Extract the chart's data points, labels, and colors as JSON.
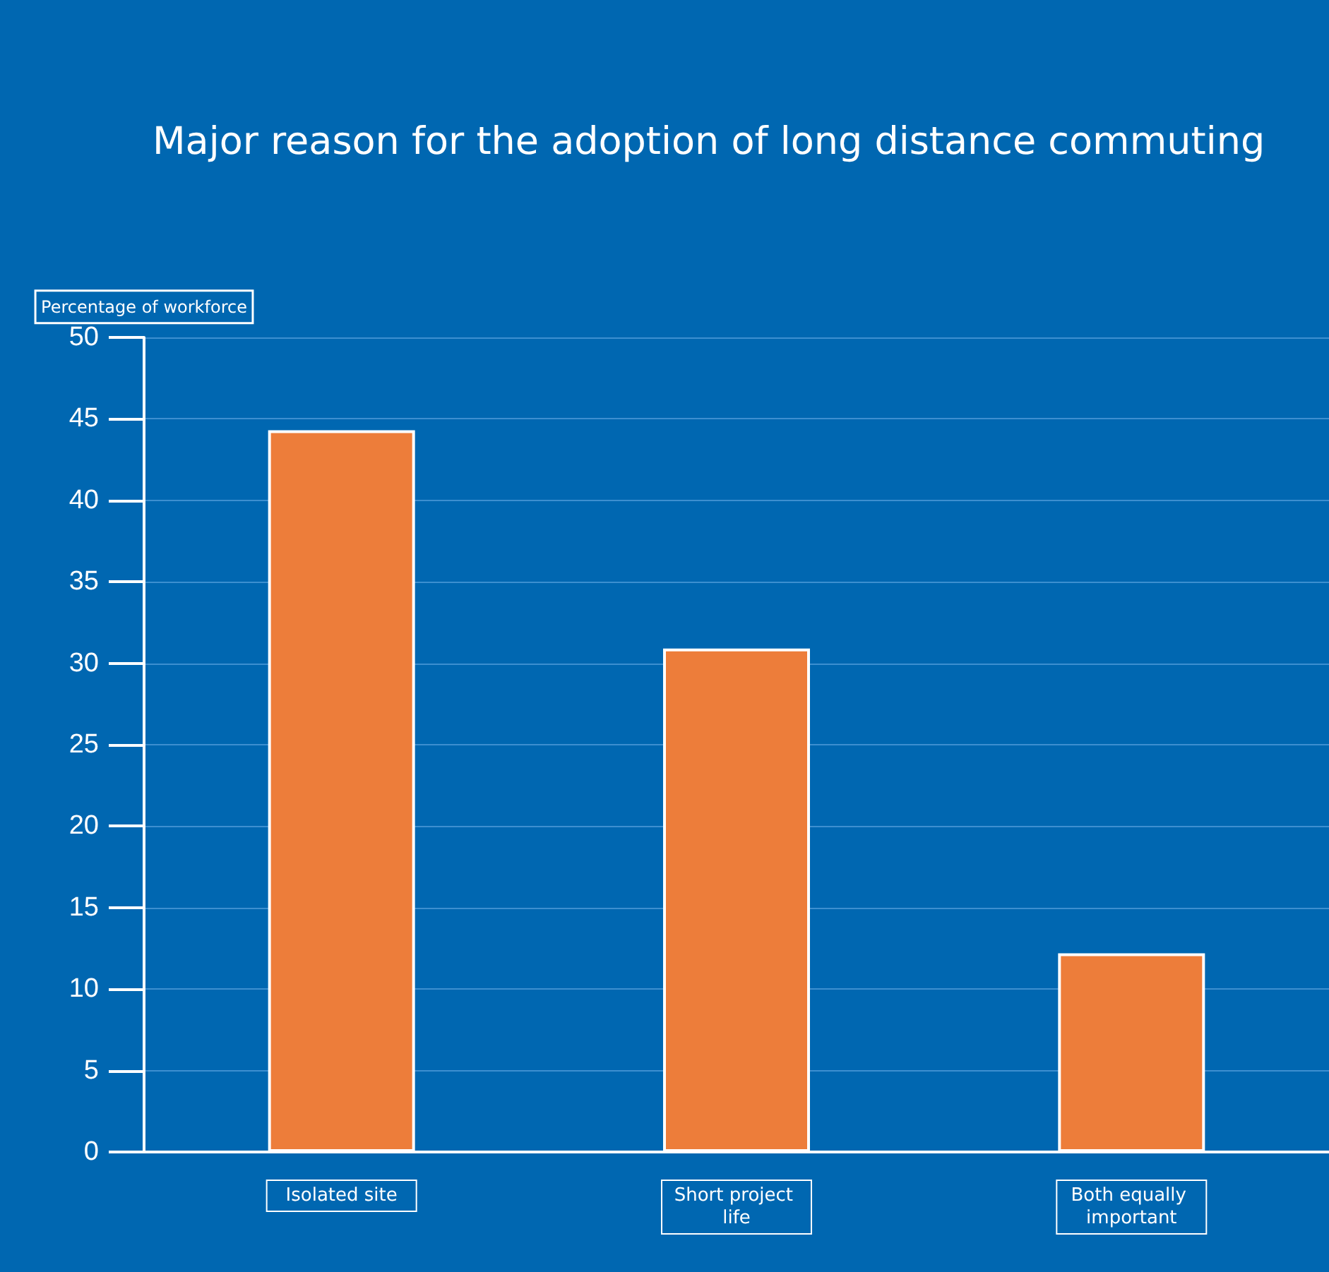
{
  "chart_data": {
    "type": "bar",
    "title": "Major reason for the adoption of long distance commuting",
    "ylabel": "Percentage of workforce",
    "categories": [
      "Isolated site",
      "Short project life",
      "Both equally important"
    ],
    "values": [
      44.3,
      30.9,
      12.2
    ],
    "color": "#ed7d3a",
    "ylim": [
      0,
      50
    ],
    "yticks": [
      0,
      5,
      10,
      15,
      20,
      25,
      30,
      35,
      40,
      45,
      50
    ],
    "grid": "y"
  }
}
